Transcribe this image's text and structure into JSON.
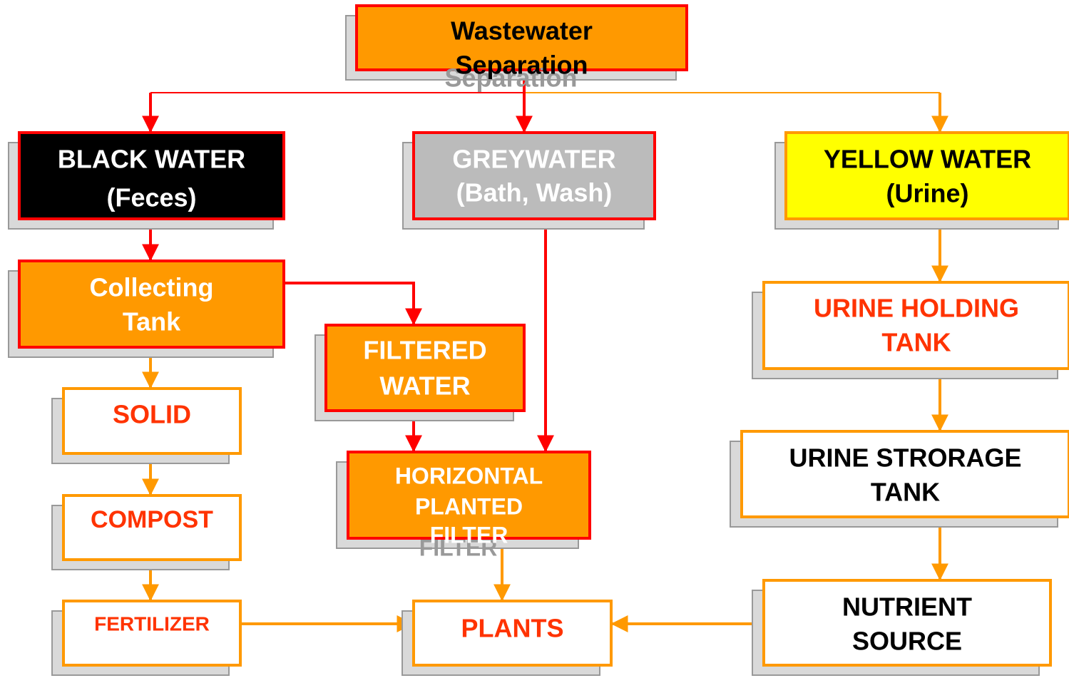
{
  "nodes": [
    {
      "lines": [
        "Wastewater",
        "Separation"
      ]
    },
    {
      "lines": [
        "BLACK WATER",
        "(Feces)"
      ]
    },
    {
      "lines": [
        "GREYWATER",
        "(Bath, Wash)"
      ]
    },
    {
      "lines": [
        "YELLOW WATER",
        "(Urine)"
      ]
    },
    {
      "lines": [
        "Collecting",
        "Tank"
      ]
    },
    {
      "lines": [
        "FILTERED",
        "WATER"
      ]
    },
    {
      "lines": [
        "SOLID"
      ]
    },
    {
      "lines": [
        "COMPOST"
      ]
    },
    {
      "lines": [
        "FERTILIZER"
      ]
    },
    {
      "lines": [
        "HORIZONTAL",
        "PLANTED",
        "FILTER"
      ]
    },
    {
      "lines": [
        "PLANTS"
      ]
    },
    {
      "lines": [
        "URINE HOLDING",
        "TANK"
      ]
    },
    {
      "lines": [
        "URINE STRORAGE",
        "TANK"
      ]
    },
    {
      "lines": [
        "NUTRIENT",
        "SOURCE"
      ]
    }
  ]
}
